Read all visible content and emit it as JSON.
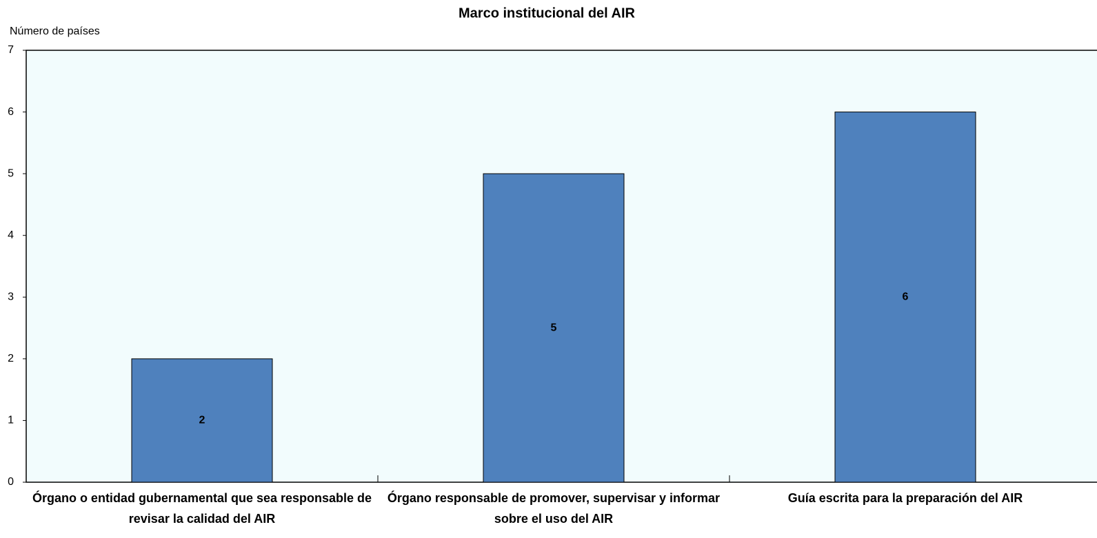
{
  "chart_data": {
    "type": "bar",
    "title": "Marco institucional del AIR",
    "y_label": "Número de países",
    "categories": [
      "Órgano o entidad gubernamental que sea responsable de revisar la calidad del AIR",
      "Órgano responsable de promover, supervisar y informar sobre el uso del AIR",
      "Guía escrita para la preparación del AIR"
    ],
    "values": [
      2,
      5,
      6
    ],
    "color": "#4f81bd",
    "ylim": [
      0,
      7
    ],
    "yticks": [
      0,
      1,
      2,
      3,
      4,
      5,
      6,
      7
    ],
    "grid": false
  }
}
